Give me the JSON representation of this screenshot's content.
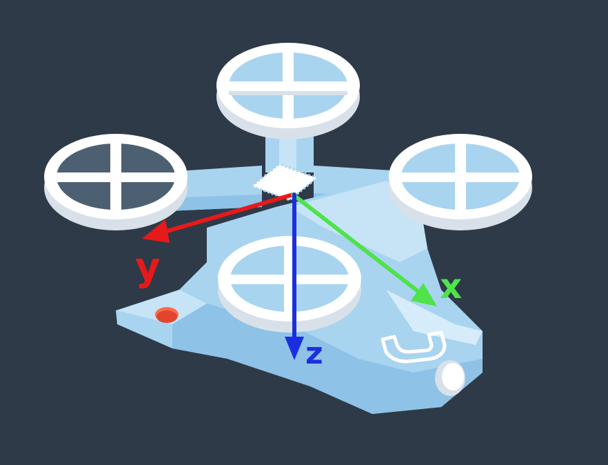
{
  "scene": {
    "background_color": "#2e3a48",
    "drone_body_color": "#a8d4f0",
    "drone_shadow_color": "#8ec2e6",
    "rotor_color": "#ffffff",
    "rotor_shade_color": "#d8e1e9",
    "light_color": "#e2452e",
    "logo_icon": "u-logo-icon",
    "camera_icon": "camera-lens-icon"
  },
  "axes": [
    {
      "id": "x",
      "label": "x",
      "color": "#4fe34a"
    },
    {
      "id": "y",
      "label": "y",
      "color": "#e8191b"
    },
    {
      "id": "z",
      "label": "z",
      "color": "#1b2fe0"
    }
  ]
}
